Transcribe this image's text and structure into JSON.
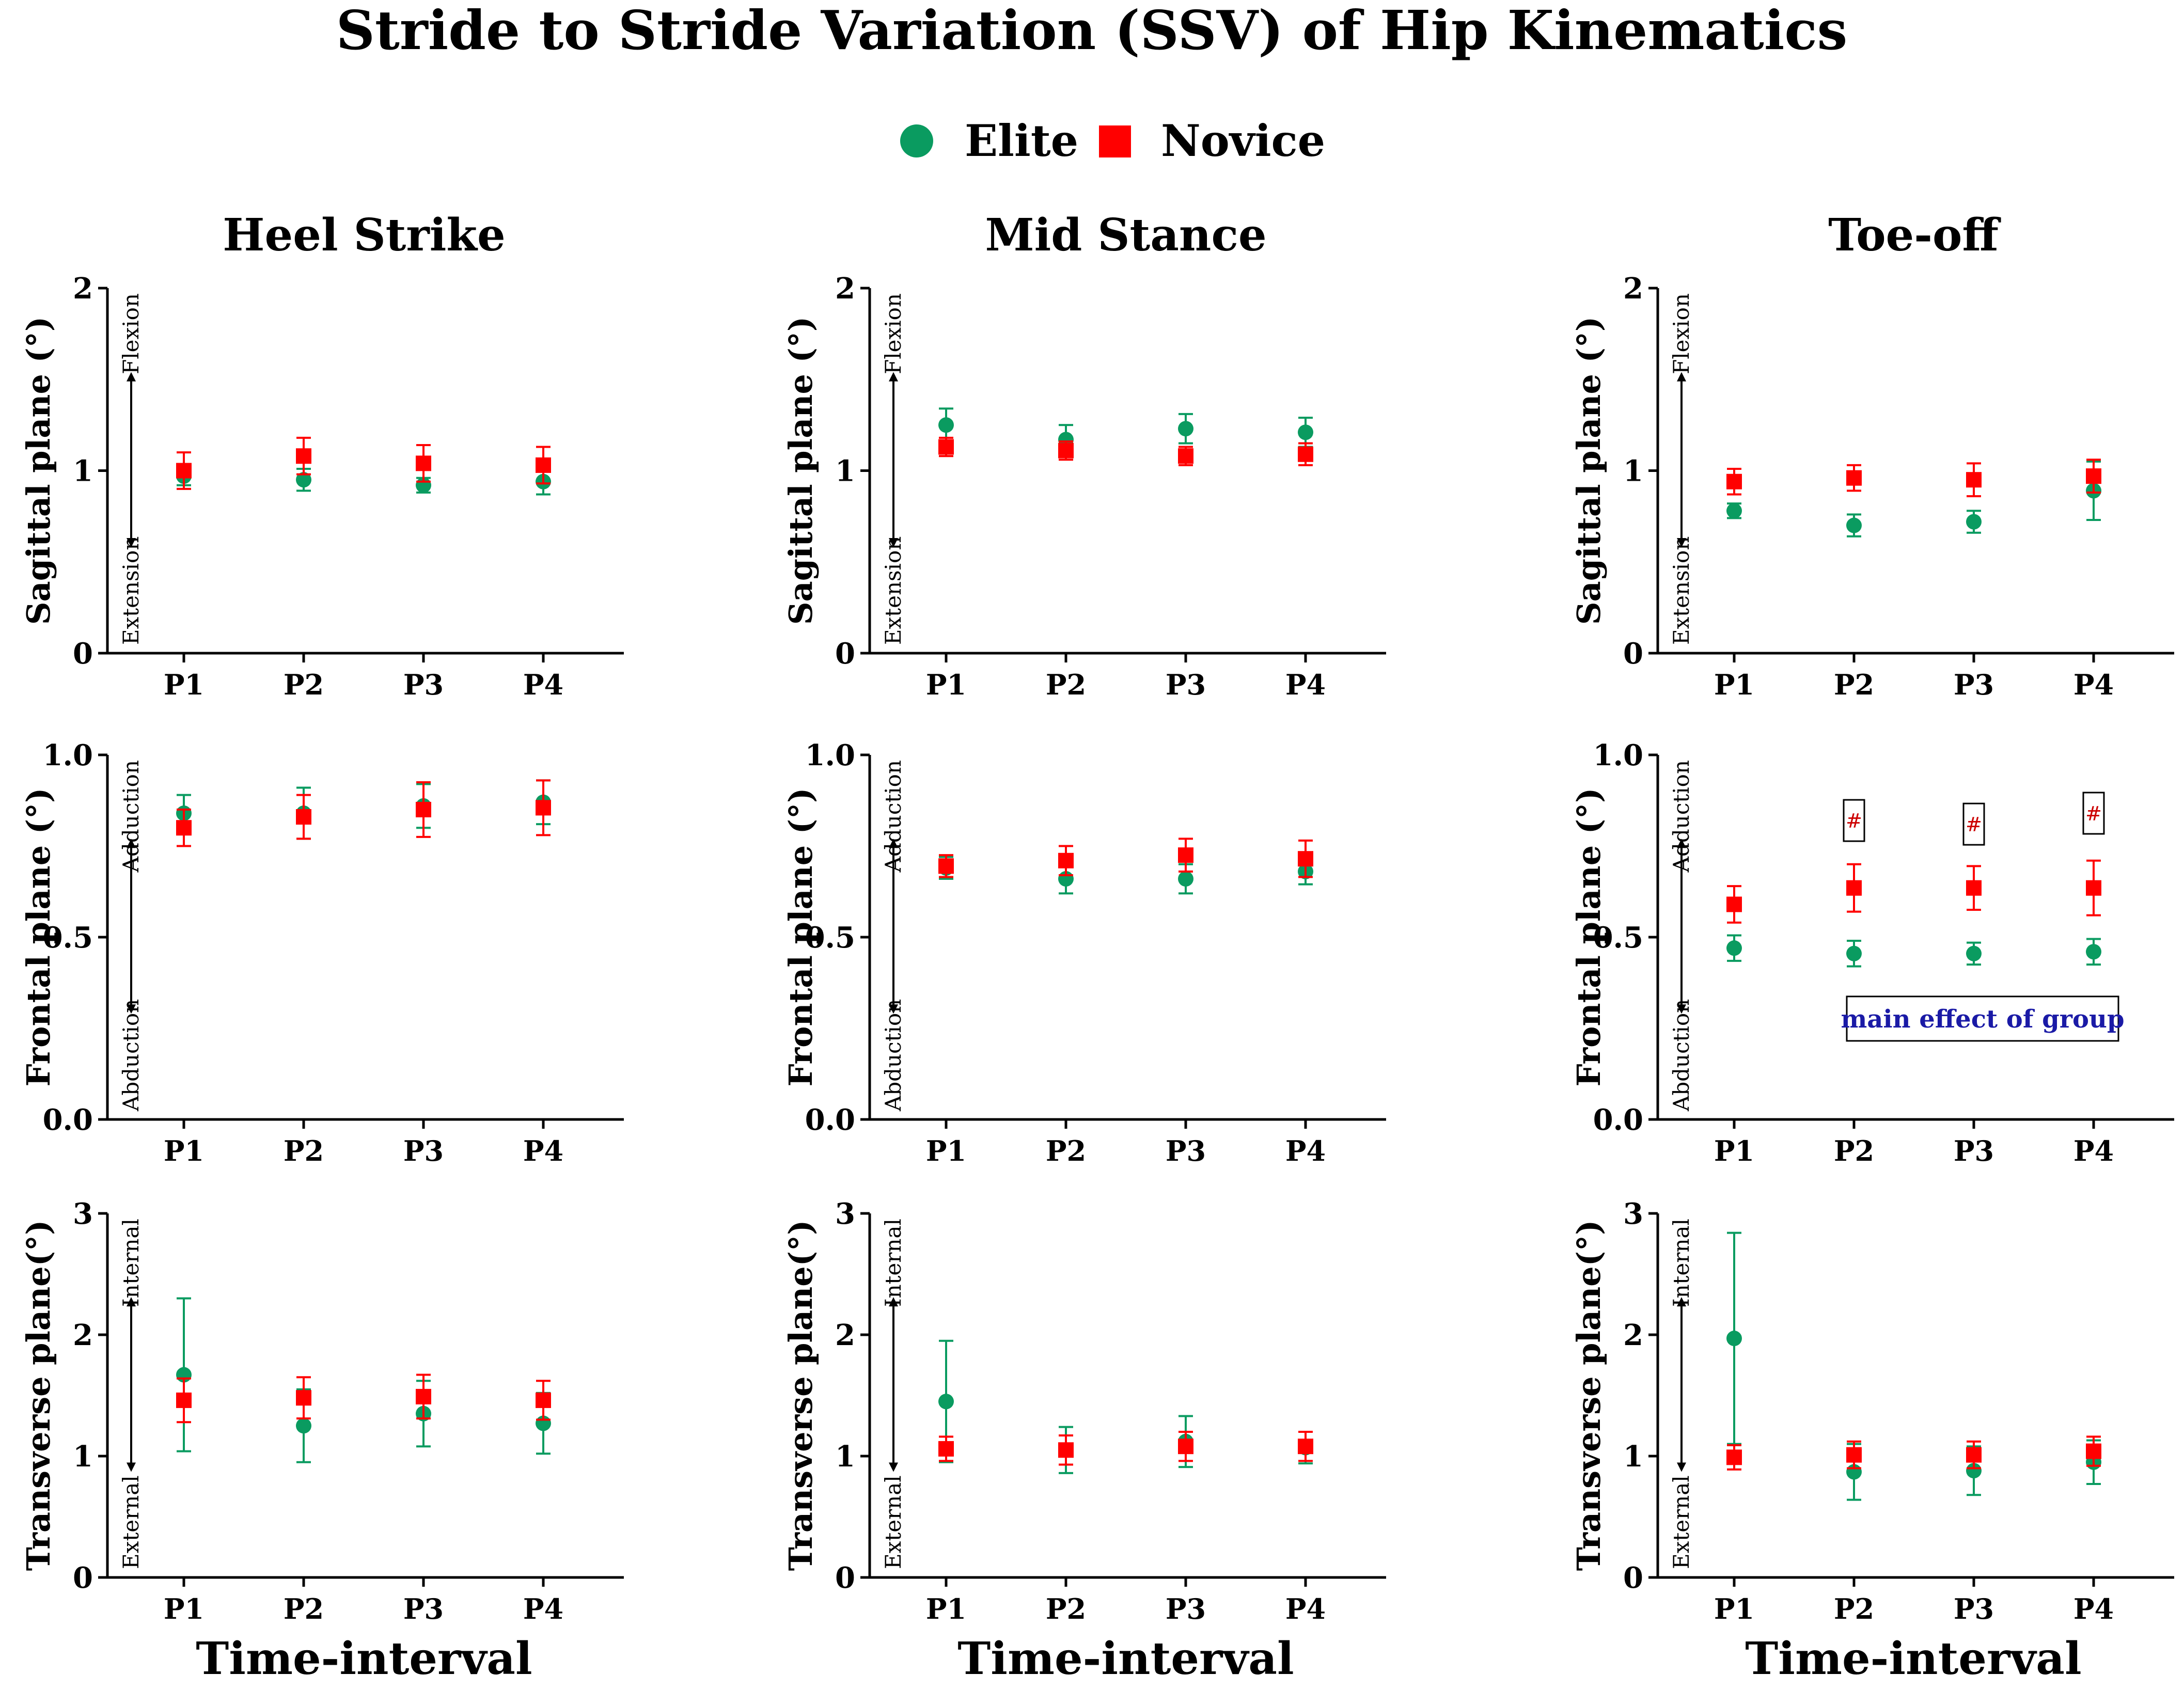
{
  "figure": {
    "title": "Stride to Stride Variation (SSV) of Hip Kinematics",
    "legend": [
      {
        "label": "Elite",
        "marker": "circle",
        "color": "#0a9b60"
      },
      {
        "label": "Novice",
        "marker": "square",
        "color": "#ff0000"
      }
    ],
    "xlabel": "Time-interval",
    "columns": [
      "Heel Strike",
      "Mid Stance",
      "Toe-off"
    ]
  },
  "chart_data": [
    {
      "type": "scatter",
      "panel": "Heel Strike / Sagittal",
      "column": 0,
      "row": 0,
      "title": "Heel Strike",
      "xlabel": "",
      "ylabel": "Sagittal plane (°)",
      "categories": [
        "P1",
        "P2",
        "P3",
        "P4"
      ],
      "ylim": [
        0,
        2
      ],
      "yticks": [
        0,
        1,
        2
      ],
      "ytick_labels": [
        "0",
        "1",
        "2"
      ],
      "direction_labels": {
        "top": "Flexion",
        "bottom": "Extension"
      },
      "series": [
        {
          "name": "Elite",
          "values": [
            0.97,
            0.95,
            0.92,
            0.94
          ],
          "err": [
            0.05,
            0.06,
            0.04,
            0.07
          ]
        },
        {
          "name": "Novice",
          "values": [
            1.0,
            1.08,
            1.04,
            1.03
          ],
          "err": [
            0.1,
            0.1,
            0.1,
            0.1
          ]
        }
      ],
      "annotations": []
    },
    {
      "type": "scatter",
      "panel": "Mid Stance / Sagittal",
      "column": 1,
      "row": 0,
      "title": "Mid Stance",
      "xlabel": "",
      "ylabel": "Sagittal plane (°)",
      "categories": [
        "P1",
        "P2",
        "P3",
        "P4"
      ],
      "ylim": [
        0,
        2
      ],
      "yticks": [
        0,
        1,
        2
      ],
      "ytick_labels": [
        "0",
        "1",
        "2"
      ],
      "direction_labels": {
        "top": "Flexion",
        "bottom": "Extension"
      },
      "series": [
        {
          "name": "Elite",
          "values": [
            1.25,
            1.17,
            1.23,
            1.21
          ],
          "err": [
            0.09,
            0.08,
            0.08,
            0.08
          ]
        },
        {
          "name": "Novice",
          "values": [
            1.13,
            1.11,
            1.08,
            1.09
          ],
          "err": [
            0.05,
            0.05,
            0.05,
            0.06
          ]
        }
      ],
      "annotations": []
    },
    {
      "type": "scatter",
      "panel": "Toe-off / Sagittal",
      "column": 2,
      "row": 0,
      "title": "Toe-off",
      "xlabel": "",
      "ylabel": "Sagittal plane (°)",
      "categories": [
        "P1",
        "P2",
        "P3",
        "P4"
      ],
      "ylim": [
        0,
        2
      ],
      "yticks": [
        0,
        1,
        2
      ],
      "ytick_labels": [
        "0",
        "1",
        "2"
      ],
      "direction_labels": {
        "top": "Flexion",
        "bottom": "Extension"
      },
      "series": [
        {
          "name": "Elite",
          "values": [
            0.78,
            0.7,
            0.72,
            0.89
          ],
          "err": [
            0.04,
            0.06,
            0.06,
            0.16
          ]
        },
        {
          "name": "Novice",
          "values": [
            0.94,
            0.96,
            0.95,
            0.97
          ],
          "err": [
            0.07,
            0.07,
            0.09,
            0.09
          ]
        }
      ],
      "annotations": []
    },
    {
      "type": "scatter",
      "panel": "Heel Strike / Frontal",
      "column": 0,
      "row": 1,
      "title": "",
      "xlabel": "",
      "ylabel": "Frontal plane (°)",
      "categories": [
        "P1",
        "P2",
        "P3",
        "P4"
      ],
      "ylim": [
        0,
        1
      ],
      "yticks": [
        0,
        0.5,
        1
      ],
      "ytick_labels": [
        "0.0",
        "0.5",
        "1.0"
      ],
      "direction_labels": {
        "top": "Adduction",
        "bottom": "Abduction"
      },
      "series": [
        {
          "name": "Elite",
          "values": [
            0.84,
            0.84,
            0.86,
            0.87
          ],
          "err": [
            0.05,
            0.07,
            0.06,
            0.06
          ]
        },
        {
          "name": "Novice",
          "values": [
            0.8,
            0.83,
            0.85,
            0.855
          ],
          "err": [
            0.05,
            0.06,
            0.075,
            0.075
          ]
        }
      ],
      "annotations": []
    },
    {
      "type": "scatter",
      "panel": "Mid Stance / Frontal",
      "column": 1,
      "row": 1,
      "title": "",
      "xlabel": "",
      "ylabel": "Frontal plane (°)",
      "categories": [
        "P1",
        "P2",
        "P3",
        "P4"
      ],
      "ylim": [
        0,
        1
      ],
      "yticks": [
        0,
        0.5,
        1
      ],
      "ytick_labels": [
        "0.0",
        "0.5",
        "1.0"
      ],
      "direction_labels": {
        "top": "Adduction",
        "bottom": "Abduction"
      },
      "series": [
        {
          "name": "Elite",
          "values": [
            0.69,
            0.66,
            0.66,
            0.68
          ],
          "err": [
            0.03,
            0.04,
            0.04,
            0.035
          ]
        },
        {
          "name": "Novice",
          "values": [
            0.695,
            0.71,
            0.725,
            0.715
          ],
          "err": [
            0.03,
            0.04,
            0.045,
            0.05
          ]
        }
      ],
      "annotations": []
    },
    {
      "type": "scatter",
      "panel": "Toe-off / Frontal",
      "column": 2,
      "row": 1,
      "title": "",
      "xlabel": "",
      "ylabel": "Frontal plane (°)",
      "categories": [
        "P1",
        "P2",
        "P3",
        "P4"
      ],
      "ylim": [
        0,
        1
      ],
      "yticks": [
        0,
        0.5,
        1
      ],
      "ytick_labels": [
        "0.0",
        "0.5",
        "1.0"
      ],
      "direction_labels": {
        "top": "Adduction",
        "bottom": "Abduction"
      },
      "series": [
        {
          "name": "Elite",
          "values": [
            0.47,
            0.455,
            0.455,
            0.46
          ],
          "err": [
            0.035,
            0.035,
            0.03,
            0.035
          ]
        },
        {
          "name": "Novice",
          "values": [
            0.59,
            0.635,
            0.635,
            0.635
          ],
          "err": [
            0.05,
            0.065,
            0.06,
            0.075
          ]
        }
      ],
      "annotations": [
        {
          "text": "#",
          "category": "P2",
          "y": 0.82
        },
        {
          "text": "#",
          "category": "P3",
          "y": 0.81
        },
        {
          "text": "#",
          "category": "P4",
          "y": 0.84
        },
        {
          "text": "main effect of group",
          "category": "P3",
          "y": 0.275
        }
      ]
    },
    {
      "type": "scatter",
      "panel": "Heel Strike / Transverse",
      "column": 0,
      "row": 2,
      "title": "",
      "xlabel": "Time-interval",
      "ylabel": "Transverse plane(°)",
      "categories": [
        "P1",
        "P2",
        "P3",
        "P4"
      ],
      "ylim": [
        0,
        3
      ],
      "yticks": [
        0,
        1,
        2,
        3
      ],
      "ytick_labels": [
        "0",
        "1",
        "2",
        "3"
      ],
      "direction_labels": {
        "top": "Internal",
        "bottom": "External"
      },
      "series": [
        {
          "name": "Elite",
          "values": [
            1.67,
            1.25,
            1.35,
            1.27
          ],
          "err": [
            0.63,
            0.3,
            0.27,
            0.25
          ]
        },
        {
          "name": "Novice",
          "values": [
            1.46,
            1.48,
            1.49,
            1.46
          ],
          "err": [
            0.18,
            0.17,
            0.18,
            0.16
          ]
        }
      ],
      "annotations": []
    },
    {
      "type": "scatter",
      "panel": "Mid Stance / Transverse",
      "column": 1,
      "row": 2,
      "title": "",
      "xlabel": "Time-interval",
      "ylabel": "Transverse plane(°)",
      "categories": [
        "P1",
        "P2",
        "P3",
        "P4"
      ],
      "ylim": [
        0,
        3
      ],
      "yticks": [
        0,
        1,
        2,
        3
      ],
      "ytick_labels": [
        "0",
        "1",
        "2",
        "3"
      ],
      "direction_labels": {
        "top": "Internal",
        "bottom": "External"
      },
      "series": [
        {
          "name": "Elite",
          "values": [
            1.45,
            1.05,
            1.12,
            1.07
          ],
          "err": [
            0.5,
            0.19,
            0.21,
            0.13
          ]
        },
        {
          "name": "Novice",
          "values": [
            1.06,
            1.05,
            1.08,
            1.08
          ],
          "err": [
            0.1,
            0.12,
            0.12,
            0.12
          ]
        }
      ],
      "annotations": []
    },
    {
      "type": "scatter",
      "panel": "Toe-off / Transverse",
      "column": 2,
      "row": 2,
      "title": "",
      "xlabel": "Time-interval",
      "ylabel": "Transverse plane(°)",
      "categories": [
        "P1",
        "P2",
        "P3",
        "P4"
      ],
      "ylim": [
        0,
        3
      ],
      "yticks": [
        0,
        1,
        2,
        3
      ],
      "ytick_labels": [
        "0",
        "1",
        "2",
        "3"
      ],
      "direction_labels": {
        "top": "Internal",
        "bottom": "External"
      },
      "series": [
        {
          "name": "Elite",
          "values": [
            1.97,
            0.87,
            0.88,
            0.95
          ],
          "err": [
            0.87,
            0.23,
            0.2,
            0.18
          ]
        },
        {
          "name": "Novice",
          "values": [
            0.99,
            1.01,
            1.01,
            1.04
          ],
          "err": [
            0.1,
            0.11,
            0.11,
            0.12
          ]
        }
      ],
      "annotations": []
    }
  ]
}
